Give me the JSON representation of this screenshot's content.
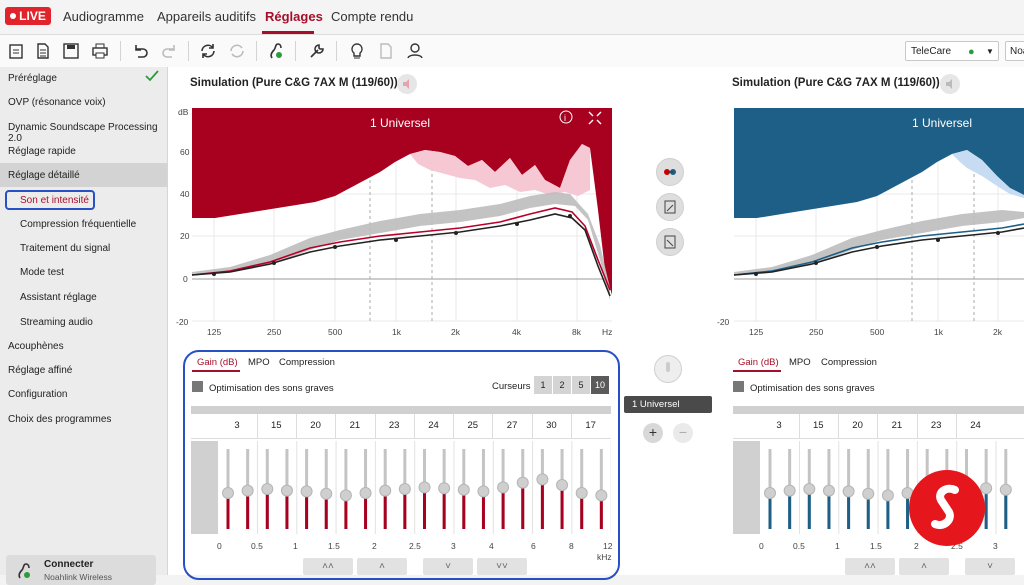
{
  "topbar": {
    "live": "LIVE",
    "tabs": [
      "Audiogramme",
      "Appareils auditifs",
      "Réglages",
      "Compte rendu"
    ],
    "active_tab": "Réglages"
  },
  "toolbar": {
    "telecare": "TeleCare",
    "right_truncated": "Noa"
  },
  "sidebar": {
    "items": [
      {
        "label": "Préréglage",
        "sub": false
      },
      {
        "label": "OVP (résonance voix)",
        "sub": false
      },
      {
        "label": "Dynamic Soundscape Processing 2.0",
        "sub": false
      },
      {
        "label": "Réglage rapide",
        "sub": false
      },
      {
        "label": "Réglage détaillé",
        "sub": false
      },
      {
        "label": "Son et intensité",
        "sub": true
      },
      {
        "label": "Compression fréquentielle",
        "sub": true
      },
      {
        "label": "Traitement du signal",
        "sub": true
      },
      {
        "label": "Mode test",
        "sub": true
      },
      {
        "label": "Assistant réglage",
        "sub": true
      },
      {
        "label": "Streaming audio",
        "sub": true
      },
      {
        "label": "Acouphènes",
        "sub": false
      },
      {
        "label": "Réglage affiné",
        "sub": false
      },
      {
        "label": "Configuration",
        "sub": false
      },
      {
        "label": "Choix des programmes",
        "sub": false
      }
    ],
    "connect": "Connecter",
    "connect_sub": "Noahlink Wireless"
  },
  "left_panel": {
    "title": "Simulation (Pure C&G 7AX M (119/60))",
    "program_label": "1 Universel"
  },
  "right_panel": {
    "title": "Simulation (Pure C&G 7AX M (119/60))",
    "program_label": "1 Universel"
  },
  "chart": {
    "y_unit": "dB",
    "x_unit": "Hz",
    "y_ticks": [
      "60",
      "40",
      "20",
      "0",
      "-20"
    ],
    "x_ticks": [
      "125",
      "250",
      "500",
      "1k",
      "2k",
      "4k",
      "8k"
    ],
    "left_color": "#a8001f",
    "right_color": "#1d5f86"
  },
  "controls": {
    "tabs": [
      "Gain (dB)",
      "MPO",
      "Compression"
    ],
    "optimisation": "Optimisation des sons graves",
    "curseurs_label": "Curseurs",
    "curseurs_options": [
      "1",
      "2",
      "5",
      "10"
    ],
    "curseurs_selected": "10",
    "values": [
      "3",
      "15",
      "20",
      "21",
      "23",
      "24",
      "25",
      "27",
      "30",
      "17"
    ],
    "right_values": [
      "3",
      "15",
      "20",
      "21",
      "23",
      "24"
    ],
    "khz_ticks": [
      "0",
      "0.5",
      "1",
      "1.5",
      "2",
      "2.5",
      "3",
      "4",
      "6",
      "8",
      "12"
    ],
    "right_khz_ticks": [
      "0",
      "0.5",
      "1",
      "1.5",
      "2",
      "2.5",
      "3"
    ],
    "khz_unit": "kHz",
    "slider_levels": [
      0.45,
      0.48,
      0.5,
      0.48,
      0.47,
      0.44,
      0.42,
      0.45,
      0.48,
      0.5,
      0.52,
      0.51,
      0.49,
      0.47,
      0.52,
      0.58,
      0.62,
      0.55,
      0.45,
      0.42
    ],
    "program_pill": "1 Universel"
  }
}
